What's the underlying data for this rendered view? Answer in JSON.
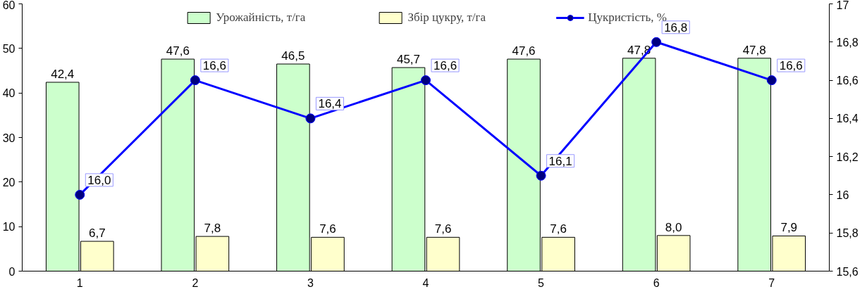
{
  "chart_data": {
    "type": "bar",
    "categories": [
      "1",
      "2",
      "3",
      "4",
      "5",
      "6",
      "7"
    ],
    "series": [
      {
        "name": "Урожайність, т/га",
        "color": "#ccffcc",
        "values": [
          42.4,
          47.6,
          46.5,
          45.7,
          47.6,
          47.8,
          47.8
        ],
        "value_labels": [
          "42,4",
          "47,6",
          "46,5",
          "45,7",
          "47,6",
          "47,8",
          "47,8"
        ]
      },
      {
        "name": "Збір цукру, т/га",
        "color": "#ffffcc",
        "values": [
          6.7,
          7.8,
          7.6,
          7.6,
          7.6,
          8.0,
          7.9
        ],
        "value_labels": [
          "6,7",
          "7,8",
          "7,6",
          "7,6",
          "7,6",
          "8,0",
          "7,9"
        ]
      },
      {
        "name": "Цукристість, %",
        "type": "line",
        "axis": "y2",
        "color": "#0000ff",
        "marker": "circle",
        "values": [
          16.0,
          16.6,
          16.4,
          16.6,
          16.1,
          16.8,
          16.6
        ],
        "value_labels": [
          "16,0",
          "16,6",
          "16,4",
          "16,6",
          "16,1",
          "16,8",
          "16,6"
        ]
      }
    ],
    "ylim": [
      0,
      60
    ],
    "yticks": [
      0,
      10,
      20,
      30,
      40,
      50,
      60
    ],
    "y2lim": [
      15.6,
      17
    ],
    "y2ticks": [
      {
        "value": 15.6,
        "label": "15,6"
      },
      {
        "value": 15.8,
        "label": "15,8"
      },
      16,
      {
        "value": 16.2,
        "label": "16,2"
      },
      {
        "value": 16.4,
        "label": "16,4"
      },
      {
        "value": 16.6,
        "label": "16,6"
      },
      {
        "value": 16.8,
        "label": "16,8"
      },
      17
    ],
    "grid": false,
    "legend": "top"
  }
}
